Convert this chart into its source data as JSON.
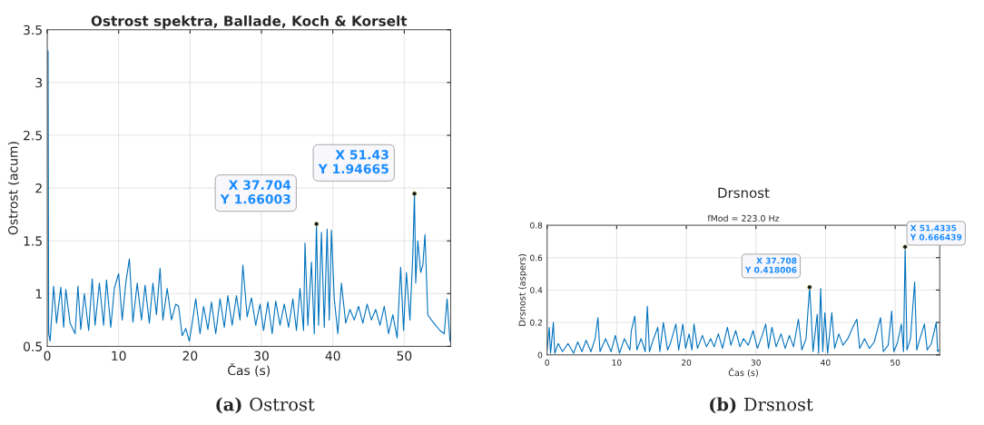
{
  "chart_data": [
    {
      "type": "line",
      "title": "Ostrost spektra, Ballade, Koch & Korselt",
      "xlabel": "Čas (s)",
      "ylabel": "Ostrost (acum)",
      "xlim": [
        0,
        56.5
      ],
      "xticks": [
        0,
        10,
        20,
        30,
        40,
        50
      ],
      "ylim": [
        0.5,
        3.5
      ],
      "yticks": [
        0.5,
        1,
        1.5,
        2,
        2.5,
        3,
        3.5
      ],
      "grid": true,
      "series": [
        {
          "color": "#0072bd",
          "x": [
            0.12,
            0.2,
            0.4,
            0.9,
            1.3,
            1.9,
            2.3,
            2.6,
            3.2,
            3.9,
            4.3,
            4.7,
            5.2,
            5.8,
            6.3,
            6.7,
            7.3,
            7.9,
            8.3,
            8.9,
            9.4,
            10.0,
            10.5,
            11.0,
            11.5,
            12.0,
            12.6,
            13.2,
            13.7,
            14.3,
            14.8,
            15.3,
            15.8,
            16.2,
            16.8,
            17.4,
            18.0,
            18.4,
            18.9,
            19.4,
            19.9,
            20.3,
            20.8,
            21.4,
            21.9,
            22.5,
            23.0,
            23.6,
            24.2,
            24.8,
            25.3,
            25.9,
            26.5,
            27.0,
            27.4,
            28.0,
            28.6,
            29.2,
            29.8,
            30.3,
            30.9,
            31.5,
            32.0,
            32.6,
            33.2,
            33.8,
            34.4,
            34.9,
            35.4,
            35.9,
            36.1,
            36.5,
            37.0,
            37.4,
            37.704,
            38.0,
            38.4,
            38.8,
            39.2,
            39.5,
            39.8,
            40.2,
            40.7,
            41.2,
            41.8,
            42.4,
            43.0,
            43.6,
            44.2,
            44.8,
            45.4,
            46.0,
            46.6,
            47.2,
            47.8,
            48.4,
            49.0,
            49.5,
            49.9,
            50.3,
            50.8,
            51.2,
            51.43,
            51.6,
            51.9,
            52.3,
            52.6,
            52.9,
            53.3,
            53.8,
            54.4,
            55.0,
            55.6,
            56.0,
            56.4
          ],
          "values": [
            3.3,
            0.62,
            0.55,
            1.07,
            0.72,
            1.06,
            0.68,
            1.04,
            0.72,
            0.62,
            1.07,
            0.66,
            1.0,
            0.65,
            1.14,
            0.7,
            1.1,
            0.7,
            1.13,
            0.68,
            1.05,
            1.19,
            0.75,
            1.1,
            1.33,
            0.73,
            1.1,
            0.75,
            1.08,
            0.72,
            1.1,
            0.8,
            1.24,
            0.75,
            1.05,
            0.75,
            0.9,
            0.88,
            0.6,
            0.67,
            0.55,
            0.72,
            0.95,
            0.62,
            0.88,
            0.66,
            0.92,
            0.62,
            0.95,
            0.68,
            0.98,
            0.7,
            0.98,
            0.75,
            1.27,
            0.78,
            0.96,
            0.7,
            0.9,
            0.65,
            0.92,
            0.62,
            0.93,
            0.7,
            0.9,
            0.68,
            0.95,
            0.65,
            1.05,
            0.65,
            1.48,
            0.7,
            1.3,
            0.62,
            1.66003,
            0.7,
            1.58,
            0.68,
            1.61,
            0.75,
            1.6,
            0.95,
            0.62,
            1.1,
            0.72,
            0.85,
            0.75,
            0.88,
            0.72,
            0.9,
            0.75,
            0.85,
            0.7,
            0.88,
            0.62,
            0.8,
            0.58,
            1.25,
            0.65,
            1.2,
            0.75,
            1.37,
            1.94665,
            1.1,
            1.5,
            1.2,
            1.27,
            1.56,
            0.8,
            0.75,
            0.7,
            0.65,
            0.62,
            0.95,
            0.55
          ]
        }
      ],
      "annotations": [
        {
          "text": "X 37.704\nY 1.66003",
          "x": 37.704,
          "y": 1.66003
        },
        {
          "text": "X 51.43\nY 1.94665",
          "x": 51.43,
          "y": 1.94665
        },
        "(a) Ostrost"
      ]
    },
    {
      "type": "line",
      "title": "Drsnost",
      "subtitle": "fMod = 223.0 Hz",
      "xlabel": "Čas (s)",
      "ylabel": "Drsnost (aspers)",
      "xlim": [
        0,
        56.4
      ],
      "xticks": [
        0,
        10,
        20,
        30,
        40,
        50
      ],
      "ylim": [
        0,
        0.8
      ],
      "yticks": [
        0,
        0.2,
        0.4,
        0.6,
        0.8
      ],
      "grid": true,
      "series": [
        {
          "color": "#0072bd",
          "x": [
            0,
            0.3,
            0.5,
            0.9,
            1.1,
            1.6,
            2.2,
            3.0,
            3.8,
            4.4,
            5.0,
            5.6,
            6.3,
            6.9,
            7.3,
            7.6,
            8.4,
            9.2,
            9.8,
            10.4,
            11.1,
            11.9,
            12.1,
            12.6,
            12.9,
            13.5,
            14.1,
            14.4,
            14.7,
            15.3,
            15.9,
            16.2,
            16.7,
            17.3,
            17.7,
            18.5,
            18.9,
            19.5,
            19.9,
            20.4,
            20.8,
            21.1,
            21.6,
            22.3,
            22.9,
            23.5,
            24.0,
            24.6,
            25.2,
            25.9,
            26.4,
            27.1,
            27.7,
            28.2,
            28.9,
            29.6,
            30.2,
            30.9,
            31.4,
            31.8,
            32.3,
            32.9,
            33.6,
            34.2,
            34.8,
            35.4,
            36.1,
            36.6,
            37.2,
            37.708,
            37.9,
            38.2,
            38.8,
            39.0,
            39.3,
            39.6,
            39.9,
            40.3,
            40.9,
            41.3,
            41.9,
            42.5,
            43.2,
            43.9,
            44.5,
            44.9,
            45.6,
            46.3,
            47.0,
            47.9,
            48.3,
            49.0,
            49.5,
            49.8,
            50.3,
            50.9,
            51.2,
            51.4335,
            51.7,
            52.2,
            52.8,
            53.1,
            53.7,
            54.2,
            54.6,
            55.2,
            55.9,
            56.1,
            56.3
          ],
          "values": [
            0.03,
            0.17,
            0.01,
            0.2,
            0.01,
            0.07,
            0.02,
            0.07,
            0.01,
            0.08,
            0.02,
            0.09,
            0.02,
            0.1,
            0.23,
            0.02,
            0.1,
            0.02,
            0.12,
            0.01,
            0.1,
            0.03,
            0.15,
            0.24,
            0.03,
            0.1,
            0.02,
            0.3,
            0.02,
            0.1,
            0.17,
            0.02,
            0.2,
            0.03,
            0.07,
            0.19,
            0.03,
            0.19,
            0.04,
            0.13,
            0.03,
            0.19,
            0.04,
            0.12,
            0.05,
            0.1,
            0.05,
            0.13,
            0.04,
            0.17,
            0.06,
            0.15,
            0.05,
            0.1,
            0.06,
            0.15,
            0.04,
            0.12,
            0.19,
            0.04,
            0.17,
            0.05,
            0.13,
            0.04,
            0.12,
            0.05,
            0.22,
            0.03,
            0.1,
            0.418006,
            0.28,
            0.02,
            0.25,
            0.01,
            0.41,
            0.02,
            0.26,
            0.01,
            0.26,
            0.04,
            0.13,
            0.06,
            0.1,
            0.17,
            0.22,
            0.04,
            0.1,
            0.04,
            0.08,
            0.23,
            0.02,
            0.06,
            0.27,
            0.02,
            0.07,
            0.19,
            0.02,
            0.666439,
            0.03,
            0.1,
            0.45,
            0.03,
            0.12,
            0.19,
            0.03,
            0.07,
            0.2,
            0.02,
            0.03
          ]
        }
      ],
      "annotations": [
        {
          "text": "X 37.708\nY 0.418006",
          "x": 37.708,
          "y": 0.418006
        },
        {
          "text": "X 51.4335\nY 0.666439",
          "x": 51.4335,
          "y": 0.666439
        },
        "(b) Drsnost"
      ]
    }
  ]
}
